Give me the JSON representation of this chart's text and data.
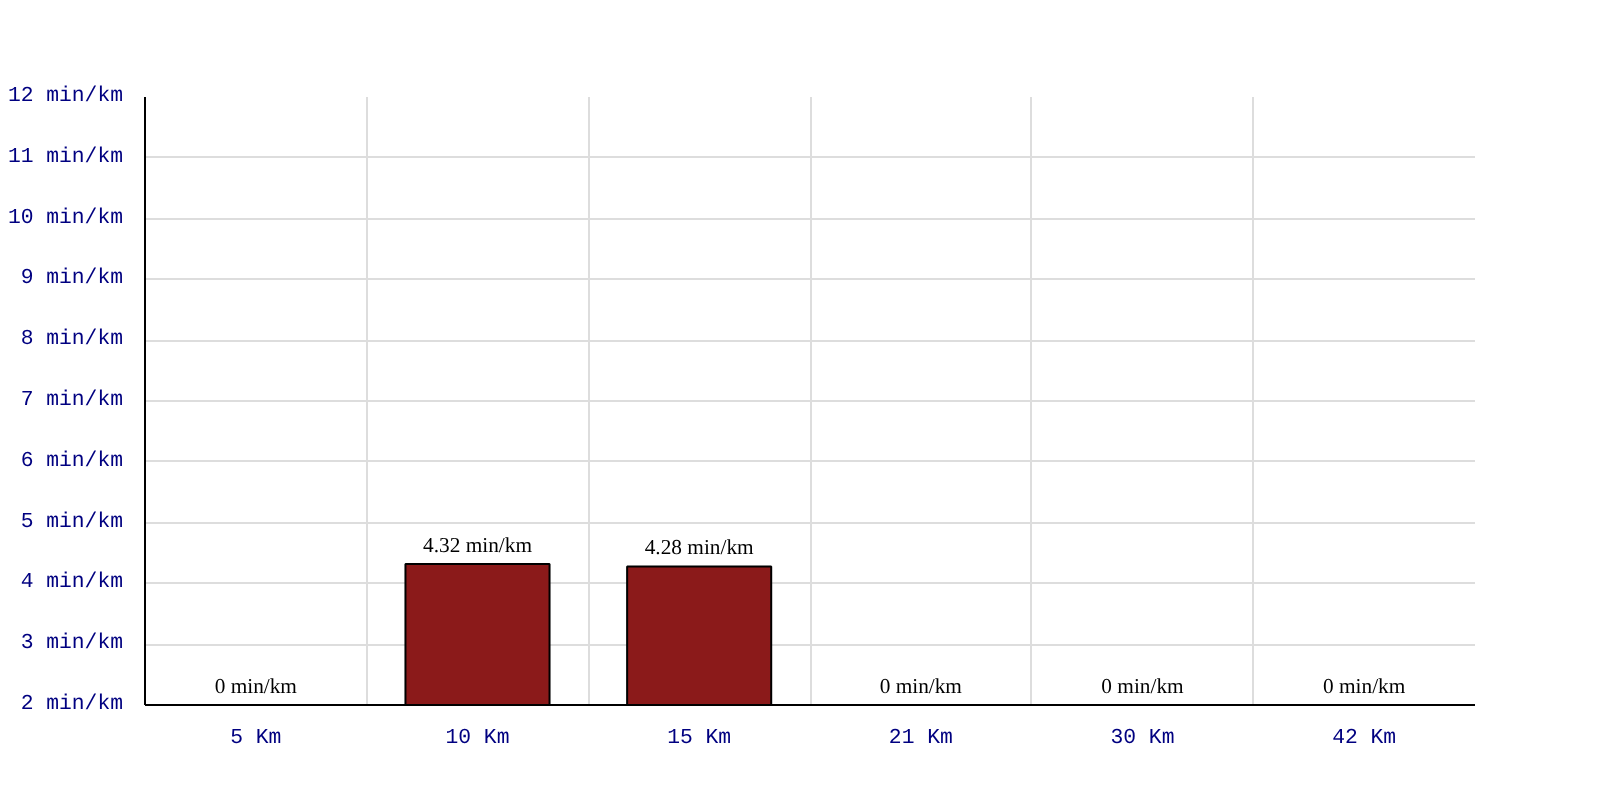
{
  "chart_data": {
    "type": "bar",
    "categories": [
      "5 Km",
      "10 Km",
      "15 Km",
      "21 Km",
      "30 Km",
      "42 Km"
    ],
    "values": [
      null,
      4.32,
      4.28,
      null,
      null,
      null
    ],
    "value_labels": [
      "0 min/km",
      "4.32 min/km",
      "4.28 min/km",
      "0 min/km",
      "0 min/km",
      "0 min/km"
    ],
    "color": "#8b1a1a",
    "ylim": [
      2,
      12
    ],
    "yticks": [
      {
        "value": 2,
        "label": "2 min/km"
      },
      {
        "value": 3,
        "label": "3 min/km"
      },
      {
        "value": 4,
        "label": "4 min/km"
      },
      {
        "value": 5,
        "label": "5 min/km"
      },
      {
        "value": 6,
        "label": "6 min/km"
      },
      {
        "value": 7,
        "label": "7 min/km"
      },
      {
        "value": 8,
        "label": "8 min/km"
      },
      {
        "value": 9,
        "label": "9 min/km"
      },
      {
        "value": 10,
        "label": "10 min/km"
      },
      {
        "value": 11,
        "label": "11 min/km"
      },
      {
        "value": 12,
        "label": "12 min/km"
      }
    ],
    "grid": true
  }
}
